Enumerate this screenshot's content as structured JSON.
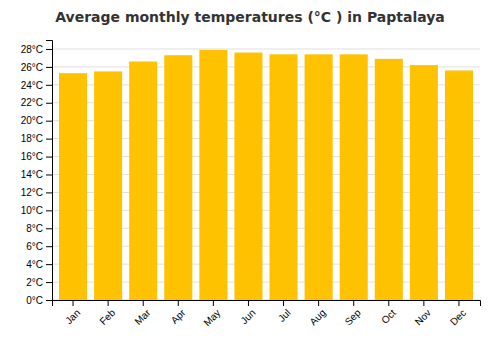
{
  "chart_data": {
    "type": "bar",
    "title": "Average monthly temperatures (°C ) in Paptalaya",
    "categories": [
      "Jan",
      "Feb",
      "Mar",
      "Apr",
      "May",
      "Jun",
      "Jul",
      "Aug",
      "Sep",
      "Oct",
      "Nov",
      "Dec"
    ],
    "values": [
      25.3,
      25.5,
      26.6,
      27.3,
      27.9,
      27.6,
      27.4,
      27.4,
      27.4,
      26.9,
      26.2,
      25.6
    ],
    "color": "#FFC200",
    "ylim": [
      0,
      29
    ],
    "yticks": [
      {
        "value": 0,
        "label": "0°C"
      },
      {
        "value": 2,
        "label": "2°C"
      },
      {
        "value": 4,
        "label": "4°C"
      },
      {
        "value": 6,
        "label": "6°C"
      },
      {
        "value": 8,
        "label": "8°C"
      },
      {
        "value": 10,
        "label": "10°C"
      },
      {
        "value": 12,
        "label": "12°C"
      },
      {
        "value": 14,
        "label": "14°C"
      },
      {
        "value": 16,
        "label": "16°C"
      },
      {
        "value": 18,
        "label": "18°C"
      },
      {
        "value": 20,
        "label": "20°C"
      },
      {
        "value": 22,
        "label": "22°C"
      },
      {
        "value": 24,
        "label": "24°C"
      },
      {
        "value": 26,
        "label": "26°C"
      },
      {
        "value": 28,
        "label": "28°C"
      }
    ],
    "grid": true
  }
}
